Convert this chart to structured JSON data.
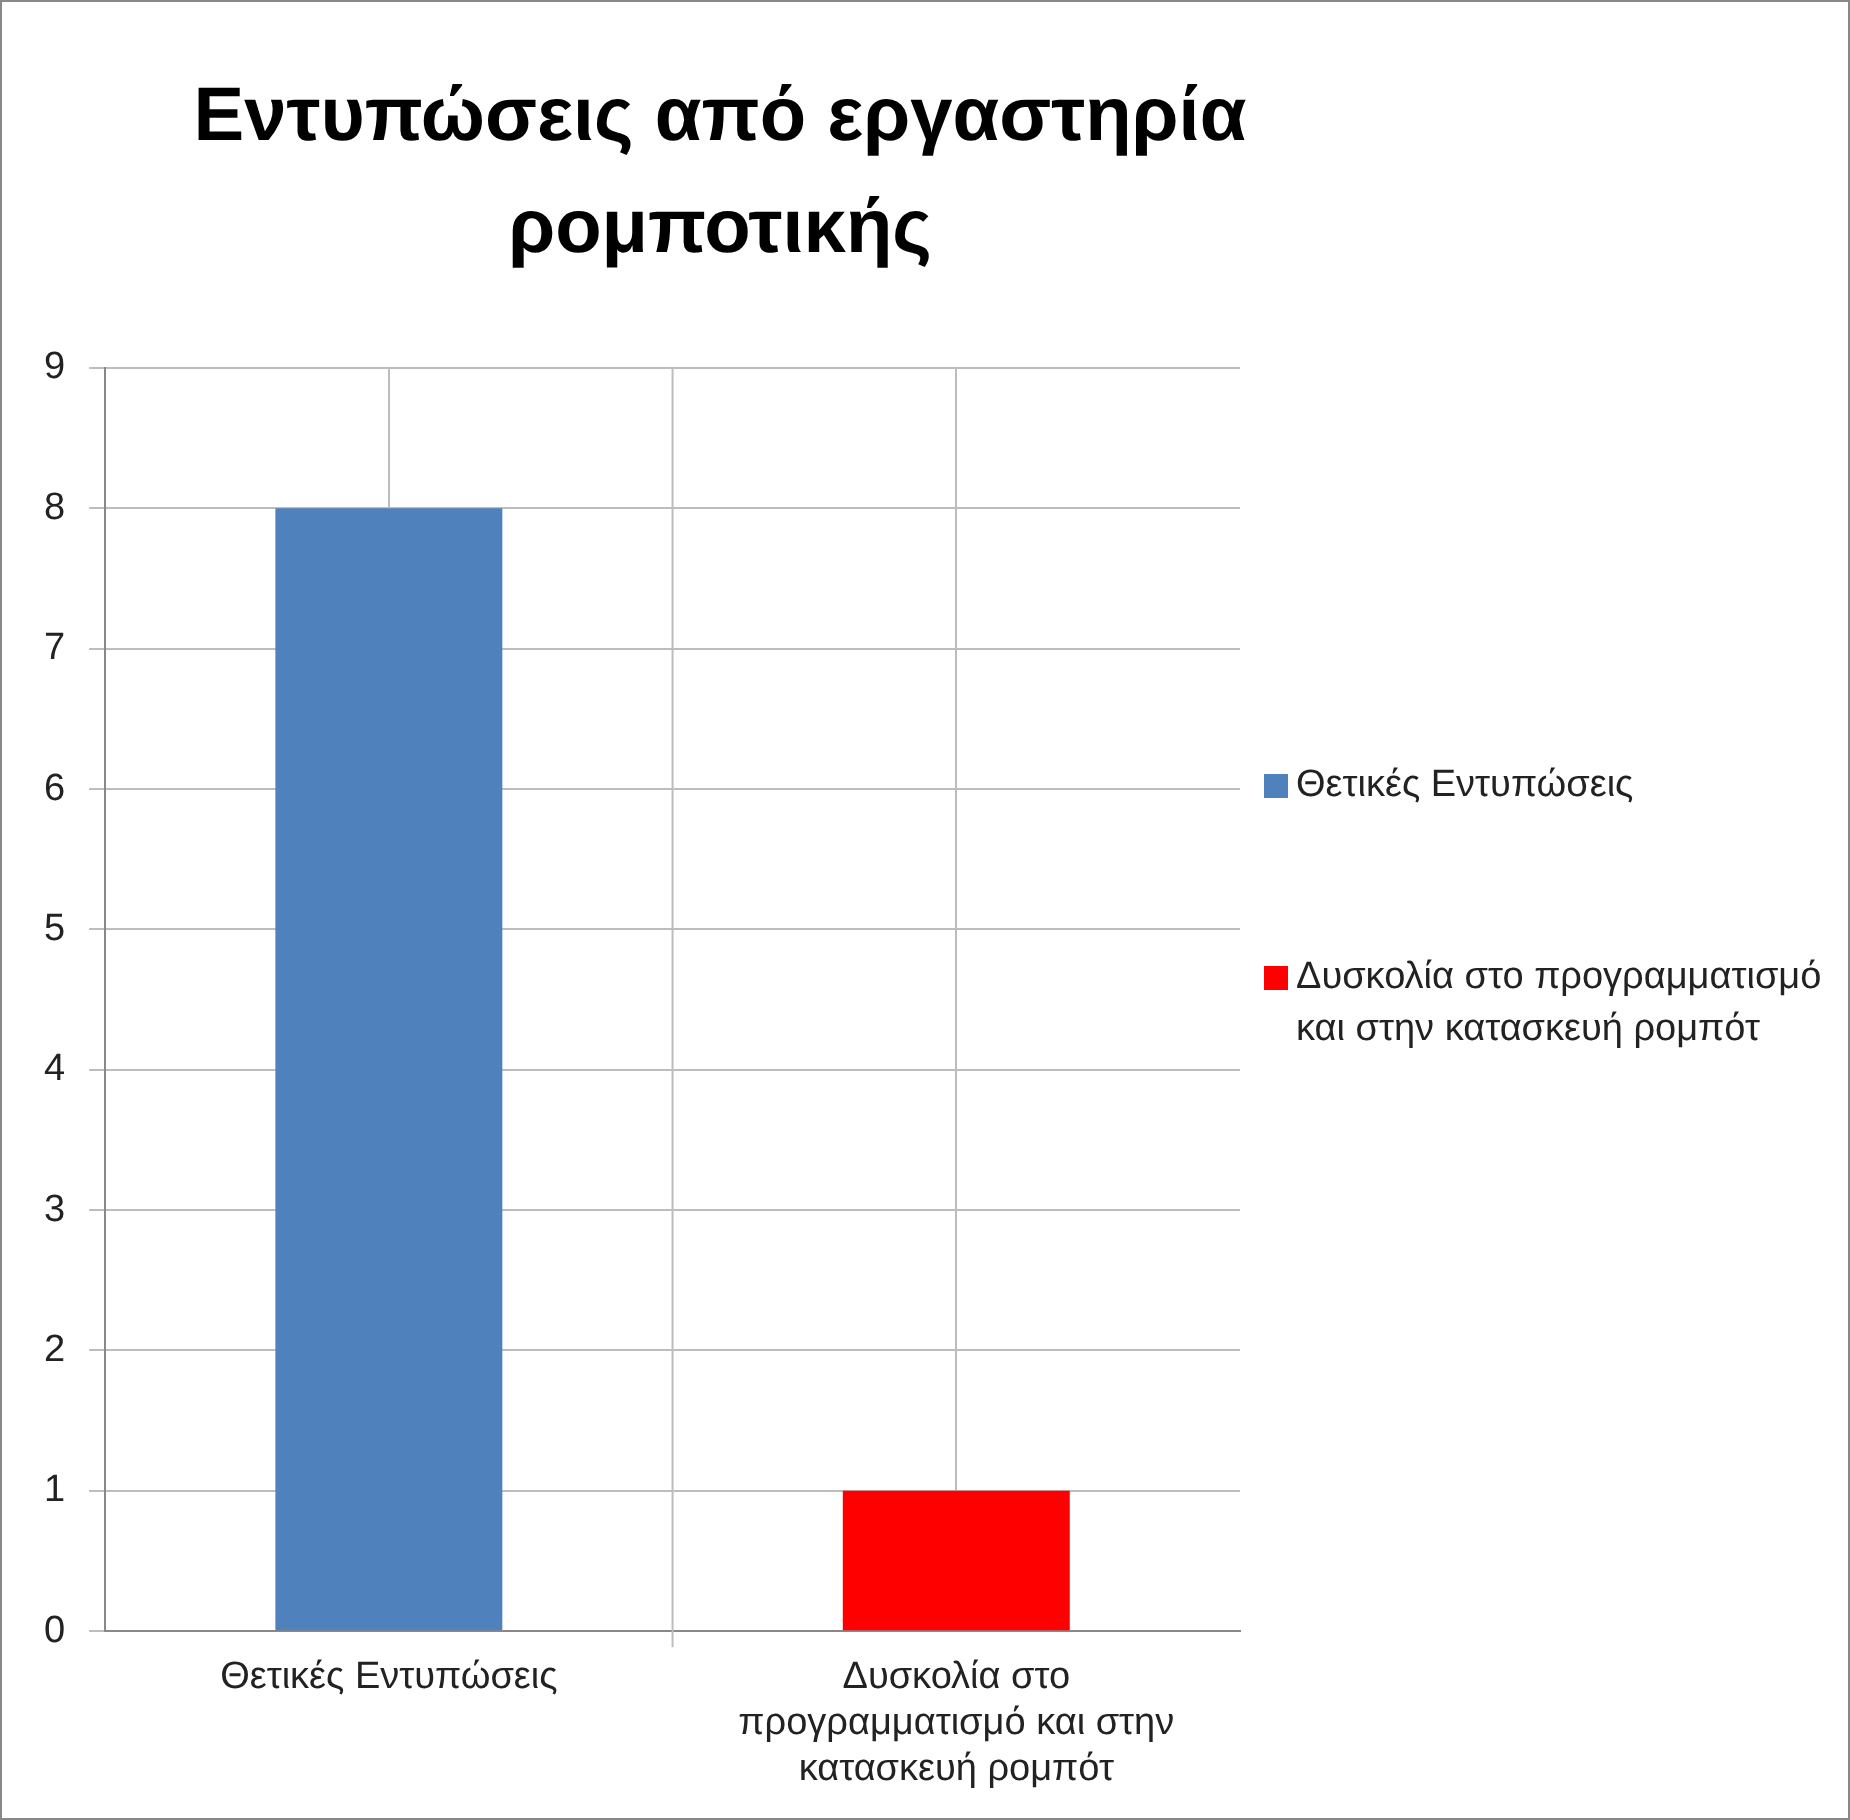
{
  "chart_data": {
    "type": "bar",
    "title": "Εντυπώσεις από εργαστηρία ρομποτικής",
    "categories": [
      "Θετικές Εντυπώσεις",
      "Δυσκολία στο προγραμματισμό και στην κατασκευή ρομπότ"
    ],
    "series": [
      {
        "name": "Θετικές Εντυπώσεις",
        "color": "#4f81bd",
        "values": [
          8,
          null
        ]
      },
      {
        "name": "Δυσκολία στο προγραμματισμό και στην κατασκευή ρομπότ",
        "color": "#ff0000",
        "values": [
          null,
          1
        ]
      }
    ],
    "ylim": [
      0,
      9
    ],
    "yticks": [
      0,
      1,
      2,
      3,
      4,
      5,
      6,
      7,
      8,
      9
    ],
    "grid": true,
    "legend": "right"
  }
}
